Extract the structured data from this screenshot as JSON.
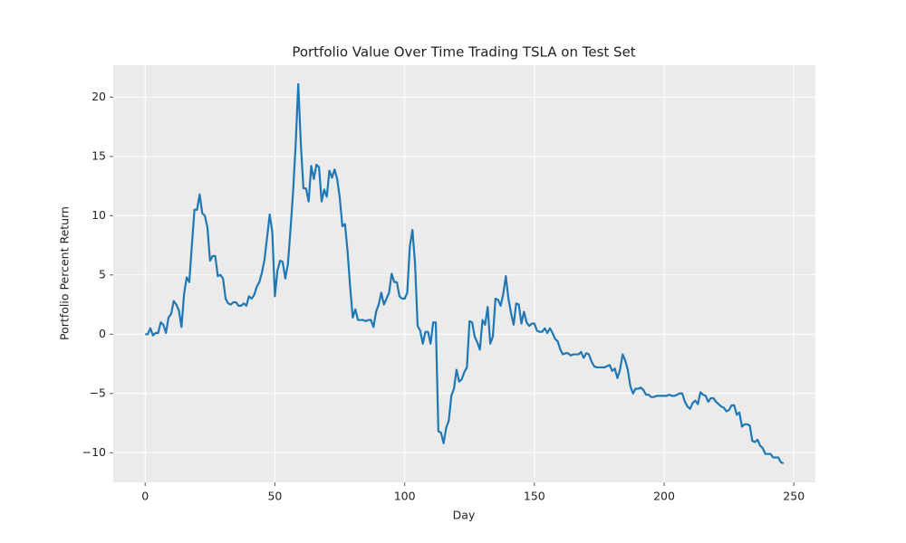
{
  "chart_data": {
    "type": "line",
    "title": "Portfolio Value Over Time Trading TSLA on Test Set",
    "x_label": "Day",
    "y_label": "Portfolio Percent Return",
    "color": "#1f77b4",
    "grid": true,
    "xlim": [
      -12.3,
      258.3
    ],
    "ylim": [
      -12.5,
      22.7
    ],
    "xticks": [
      0,
      50,
      100,
      150,
      200,
      250
    ],
    "yticks": [
      {
        "value": -10,
        "label": "−10"
      },
      {
        "value": -5,
        "label": "−5"
      },
      0,
      5,
      10,
      15,
      20
    ],
    "x": [
      0,
      1,
      2,
      3,
      4,
      5,
      6,
      7,
      8,
      9,
      10,
      11,
      12,
      13,
      14,
      15,
      16,
      17,
      18,
      19,
      20,
      21,
      22,
      23,
      24,
      25,
      26,
      27,
      28,
      29,
      30,
      31,
      32,
      33,
      34,
      35,
      36,
      37,
      38,
      39,
      40,
      41,
      42,
      43,
      44,
      45,
      46,
      47,
      48,
      49,
      50,
      51,
      52,
      53,
      54,
      55,
      56,
      57,
      58,
      59,
      60,
      61,
      62,
      63,
      64,
      65,
      66,
      67,
      68,
      69,
      70,
      71,
      72,
      73,
      74,
      75,
      76,
      77,
      78,
      79,
      80,
      81,
      82,
      83,
      84,
      85,
      86,
      87,
      88,
      89,
      90,
      91,
      92,
      93,
      94,
      95,
      96,
      97,
      98,
      99,
      100,
      101,
      102,
      103,
      104,
      105,
      106,
      107,
      108,
      109,
      110,
      111,
      112,
      113,
      114,
      115,
      116,
      117,
      118,
      119,
      120,
      121,
      122,
      123,
      124,
      125,
      126,
      127,
      128,
      129,
      130,
      131,
      132,
      133,
      134,
      135,
      136,
      137,
      138,
      139,
      140,
      141,
      142,
      143,
      144,
      145,
      146,
      147,
      148,
      149,
      150,
      151,
      152,
      153,
      154,
      155,
      156,
      157,
      158,
      159,
      160,
      161,
      162,
      163,
      164,
      165,
      166,
      167,
      168,
      169,
      170,
      171,
      172,
      173,
      174,
      175,
      176,
      177,
      178,
      179,
      180,
      181,
      182,
      183,
      184,
      185,
      186,
      187,
      188,
      189,
      190,
      191,
      192,
      193,
      194,
      195,
      196,
      197,
      198,
      199,
      200,
      201,
      202,
      203,
      204,
      205,
      206,
      207,
      208,
      209,
      210,
      211,
      212,
      213,
      214,
      215,
      216,
      217,
      218,
      219,
      220,
      221,
      222,
      223,
      224,
      225,
      226,
      227,
      228,
      229,
      230,
      231,
      232,
      233,
      234,
      235,
      236,
      237,
      238,
      239,
      240,
      241,
      242,
      243,
      244,
      245,
      246
    ],
    "values": [
      0,
      0,
      0.5,
      -0.1,
      0.1,
      0.1,
      1.0,
      0.8,
      0.1,
      1.4,
      1.7,
      2.8,
      2.5,
      2.0,
      0.6,
      3.4,
      4.8,
      4.4,
      7.5,
      10.5,
      10.5,
      11.8,
      10.2,
      10.0,
      9.0,
      6.2,
      6.6,
      6.6,
      4.9,
      5.0,
      4.7,
      3.0,
      2.6,
      2.5,
      2.7,
      2.7,
      2.4,
      2.4,
      2.6,
      2.4,
      3.2,
      3.0,
      3.3,
      4.0,
      4.4,
      5.2,
      6.3,
      8.2,
      10.1,
      8.6,
      3.2,
      5.4,
      6.2,
      6.1,
      4.7,
      5.9,
      8.8,
      12.0,
      16.0,
      21.1,
      16.0,
      12.3,
      12.3,
      11.2,
      14.2,
      13.1,
      14.3,
      14.1,
      11.2,
      12.2,
      11.6,
      13.8,
      13.2,
      13.9,
      13.1,
      11.5,
      9.1,
      9.3,
      7.0,
      4.0,
      1.4,
      2.1,
      1.2,
      1.2,
      1.2,
      1.1,
      1.2,
      1.2,
      0.6,
      1.9,
      2.5,
      3.5,
      2.5,
      3.0,
      3.5,
      5.1,
      4.4,
      4.4,
      3.2,
      3.0,
      3.0,
      3.5,
      7.4,
      8.8,
      6.0,
      0.7,
      0.3,
      -0.8,
      0.2,
      0.2,
      -0.8,
      1.0,
      1.0,
      -8.2,
      -8.3,
      -9.2,
      -7.9,
      -7.3,
      -5.2,
      -4.6,
      -3.0,
      -4.0,
      -3.8,
      -3.2,
      -2.8,
      1.1,
      1.0,
      -0.2,
      -0.7,
      -1.3,
      1.2,
      0.8,
      2.3,
      -0.8,
      -0.2,
      3.0,
      2.9,
      2.4,
      3.4,
      4.9,
      3.0,
      1.8,
      0.8,
      2.6,
      2.5,
      0.9,
      1.9,
      1.0,
      0.7,
      0.9,
      0.9,
      0.3,
      0.2,
      0.2,
      0.5,
      0.1,
      0.5,
      0.1,
      -0.4,
      -0.6,
      -1.3,
      -1.7,
      -1.6,
      -1.6,
      -1.8,
      -1.7,
      -1.7,
      -1.7,
      -1.5,
      -2.0,
      -1.6,
      -1.7,
      -2.3,
      -2.7,
      -2.8,
      -2.8,
      -2.8,
      -2.8,
      -2.7,
      -2.6,
      -3.1,
      -2.9,
      -3.7,
      -3.0,
      -1.7,
      -2.2,
      -3.0,
      -4.4,
      -5.0,
      -4.6,
      -4.6,
      -4.5,
      -4.7,
      -5.1,
      -5.1,
      -5.3,
      -5.3,
      -5.2,
      -5.2,
      -5.2,
      -5.2,
      -5.2,
      -5.1,
      -5.2,
      -5.2,
      -5.1,
      -5.0,
      -5.0,
      -5.7,
      -6.1,
      -6.3,
      -5.8,
      -5.6,
      -5.9,
      -4.9,
      -5.1,
      -5.2,
      -5.7,
      -5.4,
      -5.4,
      -5.7,
      -5.9,
      -6.1,
      -6.2,
      -6.5,
      -6.4,
      -6.0,
      -6.0,
      -6.8,
      -6.6,
      -7.8,
      -7.6,
      -7.6,
      -7.7,
      -9.0,
      -9.1,
      -8.9,
      -9.4,
      -9.6,
      -10.1,
      -10.1,
      -10.1,
      -10.4,
      -10.4,
      -10.4,
      -10.8,
      -10.9
    ]
  }
}
